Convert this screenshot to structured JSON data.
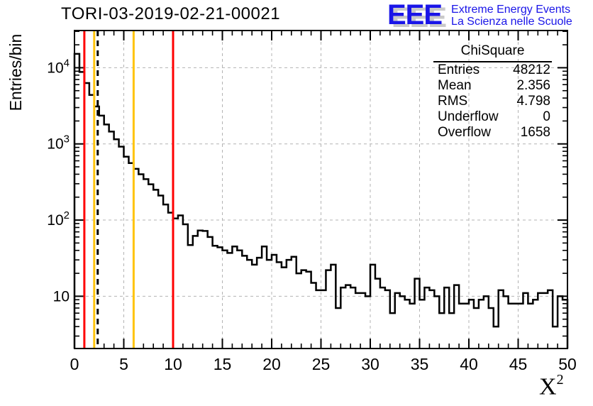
{
  "title": "TORI-03-2019-02-21-00021",
  "logo": {
    "letters": "EEE",
    "line1": "Extreme Energy Events",
    "line2": "La Scienza nelle Scuole",
    "color": "#1a15e8",
    "shadow_color": "#c9c9c9"
  },
  "stats": {
    "title": "ChiSquare",
    "rows": [
      [
        "Entries",
        "48212"
      ],
      [
        "Mean",
        "2.356"
      ],
      [
        "RMS",
        "4.798"
      ],
      [
        "Underflow",
        "0"
      ],
      [
        "Overflow",
        "1658"
      ]
    ]
  },
  "chart_data": {
    "type": "bar",
    "subtype": "step-histogram-logy",
    "title": "TORI-03-2019-02-21-00021",
    "ylabel": "Entries/bin",
    "xlabel": {
      "base": "X",
      "sup": "2"
    },
    "xlim": [
      0,
      50
    ],
    "ylim_log": [
      2.06,
      30800
    ],
    "bin_width": 0.5,
    "n_bins": 100,
    "grid": true,
    "x_major_ticks": [
      0,
      5,
      10,
      15,
      20,
      25,
      30,
      35,
      40,
      45,
      50
    ],
    "x_minor_tick_step": 1,
    "y_major_ticks": [
      {
        "value": 10,
        "base": "10",
        "exp": ""
      },
      {
        "value": 100,
        "base": "10",
        "exp": "2"
      },
      {
        "value": 1000,
        "base": "10",
        "exp": "3"
      },
      {
        "value": 10000,
        "base": "10",
        "exp": "4"
      }
    ],
    "values": [
      15200,
      8800,
      6300,
      4400,
      3100,
      2350,
      1800,
      1450,
      1150,
      920,
      680,
      560,
      470,
      400,
      345,
      295,
      250,
      210,
      160,
      125,
      105,
      115,
      88,
      47,
      62,
      73,
      72,
      60,
      46,
      44,
      40,
      37,
      45,
      40,
      34,
      30,
      26,
      32,
      45,
      30,
      35,
      28,
      24,
      30,
      33,
      20,
      22,
      21,
      15,
      12,
      12,
      22,
      26,
      7,
      13,
      14,
      13,
      11,
      11,
      10,
      26,
      17,
      13,
      12,
      6,
      11,
      10,
      9,
      8,
      17,
      9,
      13,
      12,
      10,
      6,
      13,
      6,
      14,
      8,
      8,
      9,
      7,
      9,
      10,
      7,
      4,
      12,
      10,
      8,
      8,
      8,
      11,
      8,
      9,
      11,
      11,
      12,
      4,
      10,
      9
    ],
    "line_color": "#000000",
    "grid_color": "#b3b3b3",
    "vlines": [
      {
        "x": 1,
        "color": "#ff0000",
        "dash": false,
        "name": "red-cut-low"
      },
      {
        "x": 2,
        "color": "#ffc40d",
        "dash": false,
        "name": "yellow-cut-low"
      },
      {
        "x": 2.356,
        "color": "#000000",
        "dash": true,
        "name": "mean-line"
      },
      {
        "x": 6,
        "color": "#ffc40d",
        "dash": false,
        "name": "yellow-cut-high"
      },
      {
        "x": 10,
        "color": "#ff0000",
        "dash": false,
        "name": "red-cut-high"
      }
    ]
  }
}
